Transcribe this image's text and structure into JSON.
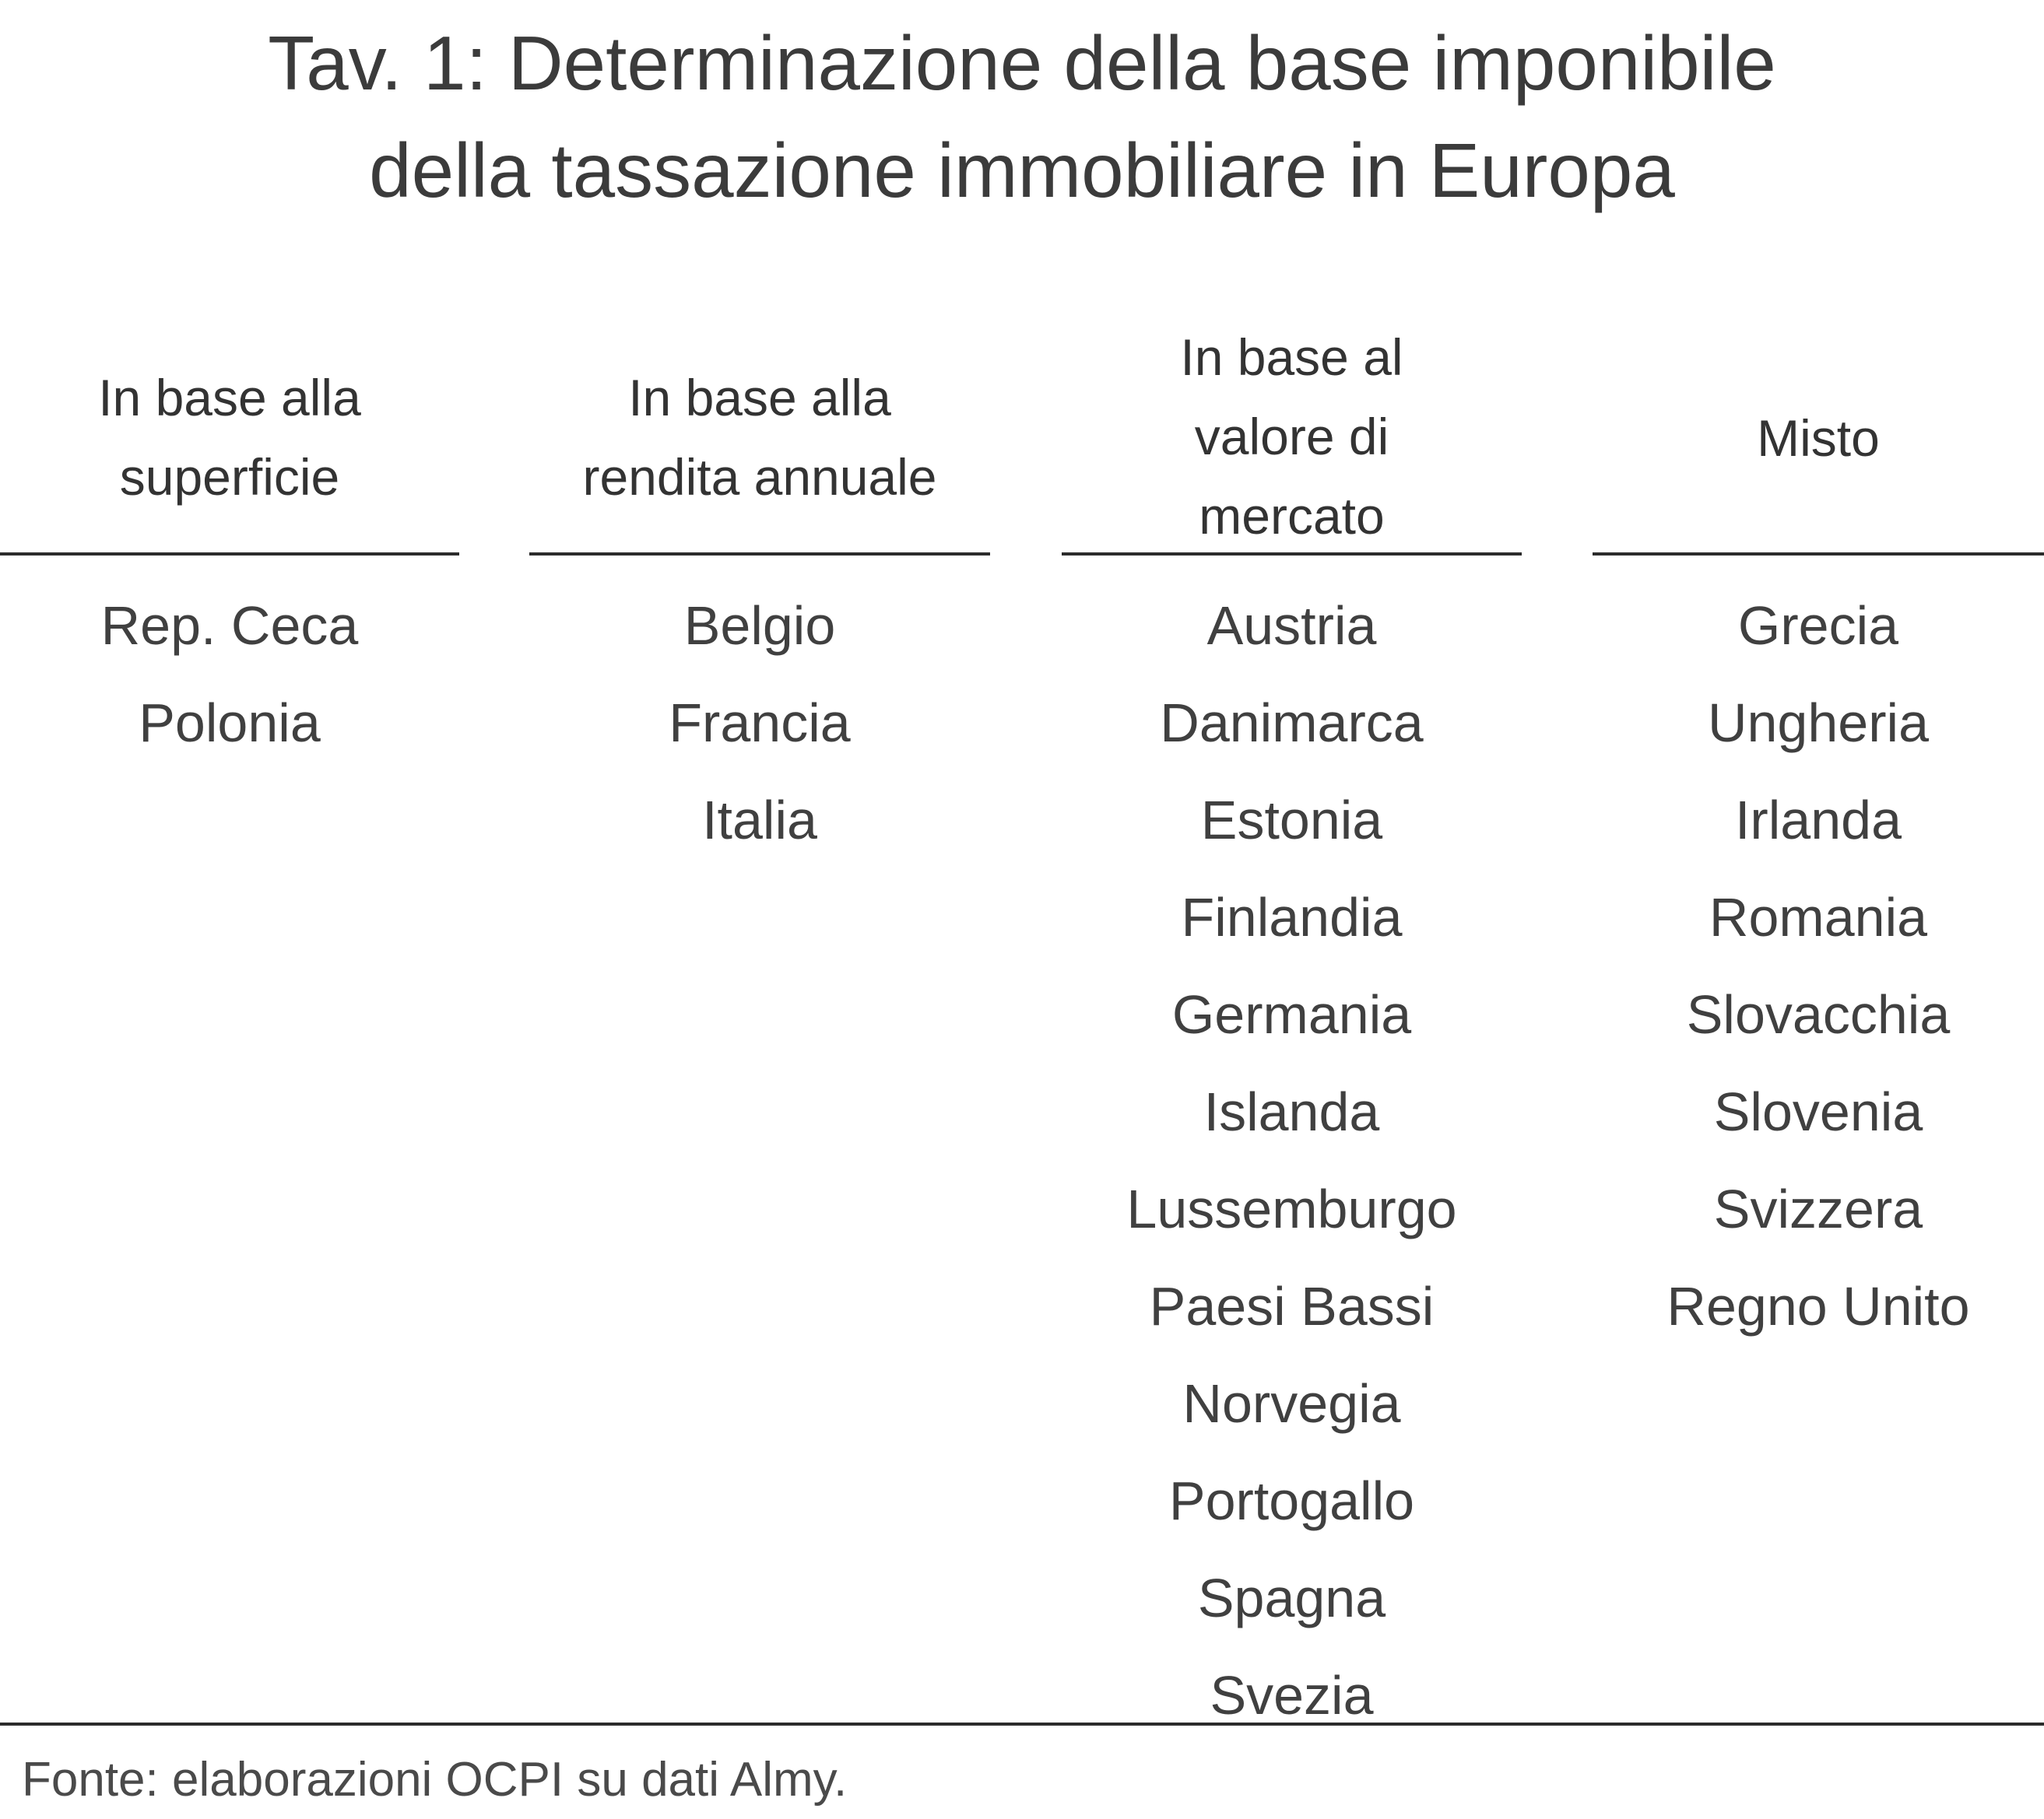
{
  "title": {
    "line1": "Tav. 1: Determinazione della base imponibile",
    "line2": "della tassazione immobiliare in Europa"
  },
  "columns": [
    {
      "header": [
        "In base alla",
        "superficie"
      ],
      "items": [
        "Rep. Ceca",
        "Polonia"
      ]
    },
    {
      "header": [
        "In base alla",
        "rendita annuale"
      ],
      "items": [
        "Belgio",
        "Francia",
        "Italia"
      ]
    },
    {
      "header": [
        "In base al",
        "valore di",
        "mercato"
      ],
      "items": [
        "Austria",
        "Danimarca",
        "Estonia",
        "Finlandia",
        "Germania",
        "Islanda",
        "Lussemburgo",
        "Paesi Bassi",
        "Norvegia",
        "Portogallo",
        "Spagna",
        "Svezia"
      ]
    },
    {
      "header": [
        "Misto"
      ],
      "items": [
        "Grecia",
        "Ungheria",
        "Irlanda",
        "Romania",
        "Slovacchia",
        "Slovenia",
        "Svizzera",
        "Regno Unito"
      ]
    }
  ],
  "source": "Fonte: elaborazioni OCPI su dati Almy."
}
